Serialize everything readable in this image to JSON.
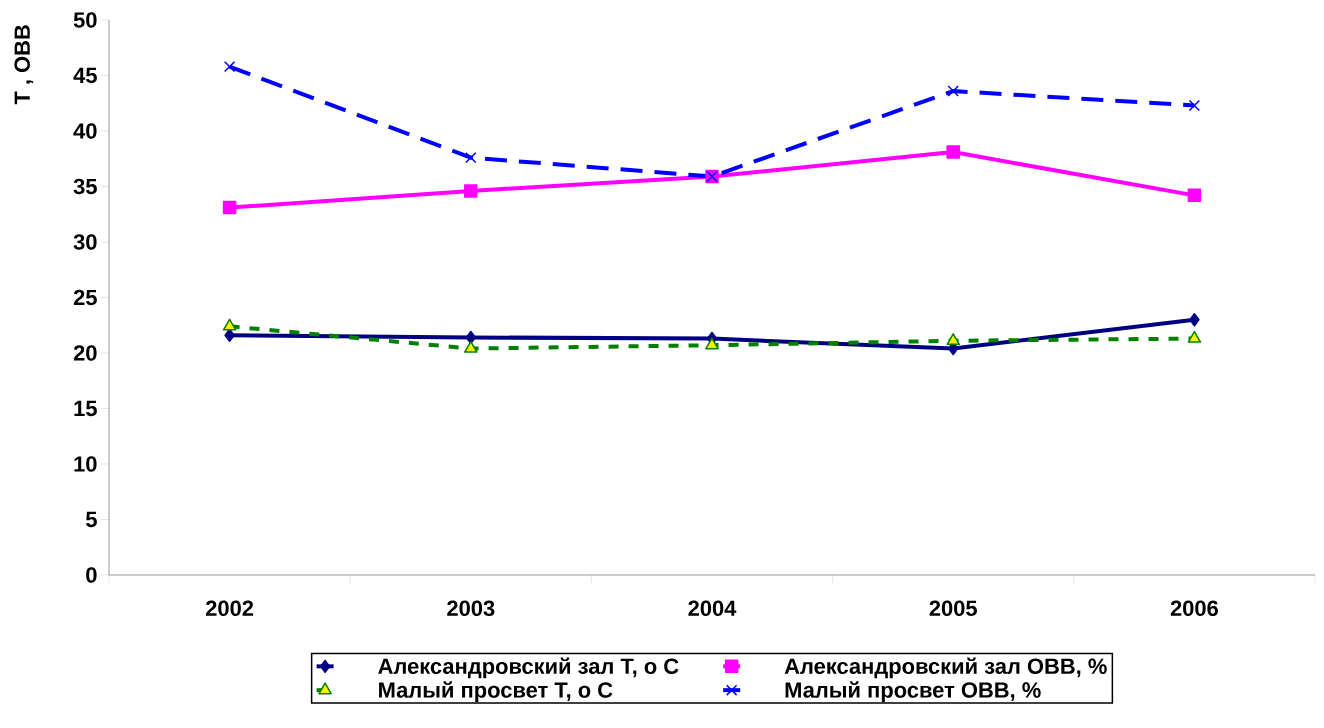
{
  "chart_data": {
    "type": "line",
    "ylabel": "Т , ОВВ",
    "categories": [
      "2002",
      "2003",
      "2004",
      "2005",
      "2006"
    ],
    "ylim": [
      0,
      50
    ],
    "yticks": [
      0,
      5,
      10,
      15,
      20,
      25,
      30,
      35,
      40,
      45,
      50
    ],
    "grid": false,
    "legend": "bottom",
    "series": [
      {
        "name": "Александровский зал Т, о С",
        "color": "#000080",
        "marker": "diamond",
        "line_style": "solid",
        "values": [
          21.6,
          21.4,
          21.3,
          20.4,
          23.0
        ]
      },
      {
        "name": "Александровский зал ОВВ, %",
        "color": "#ff00ff",
        "marker": "square",
        "line_style": "solid",
        "values": [
          33.1,
          34.6,
          35.9,
          38.1,
          34.2
        ]
      },
      {
        "name": "Малый просвет Т, о С",
        "color": "#008000",
        "marker": "triangle",
        "line_style": "dotted",
        "values": [
          22.4,
          20.4,
          20.7,
          21.1,
          21.3
        ]
      },
      {
        "name": "Малый просвет ОВВ, %",
        "color": "#0000ff",
        "marker": "cross",
        "line_style": "dashed",
        "values": [
          45.8,
          37.6,
          35.9,
          43.6,
          42.3
        ]
      }
    ]
  }
}
